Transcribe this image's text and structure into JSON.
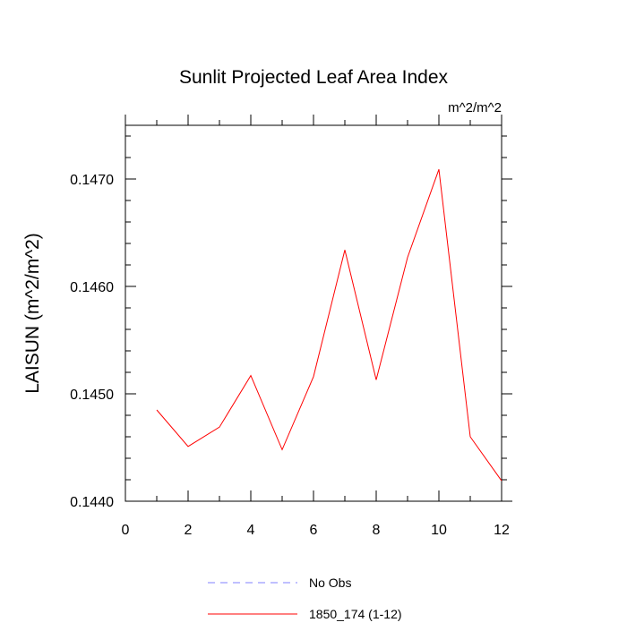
{
  "chart_data": {
    "type": "line",
    "title": "Sunlit Projected Leaf Area Index",
    "units_label": "m^2/m^2",
    "ylabel": "LAISUN  (m^2/m^2)",
    "xlabel": "",
    "xlim": [
      0,
      12
    ],
    "ylim": [
      0.144,
      0.1475
    ],
    "xticks": [
      0,
      2,
      4,
      6,
      8,
      10,
      12
    ],
    "xtick_labels": [
      "0",
      "2",
      "4",
      "6",
      "8",
      "10",
      "12"
    ],
    "yticks": [
      0.144,
      0.145,
      0.146,
      0.147
    ],
    "ytick_labels": [
      "0.1440",
      "0.1450",
      "0.1460",
      "0.1470"
    ],
    "grid": false,
    "legend_position": "bottom",
    "series": [
      {
        "name": "No Obs",
        "color": "#8080ff",
        "dash": "dashed",
        "x": [],
        "y": []
      },
      {
        "name": "1850_174 (1-12)",
        "color": "#ff0000",
        "dash": "solid",
        "x": [
          1,
          2,
          3,
          4,
          5,
          6,
          7,
          8,
          9,
          10,
          11,
          12
        ],
        "y": [
          0.14485,
          0.14451,
          0.14469,
          0.14517,
          0.14448,
          0.14516,
          0.14634,
          0.14513,
          0.14627,
          0.14709,
          0.1446,
          0.14419
        ]
      }
    ]
  }
}
